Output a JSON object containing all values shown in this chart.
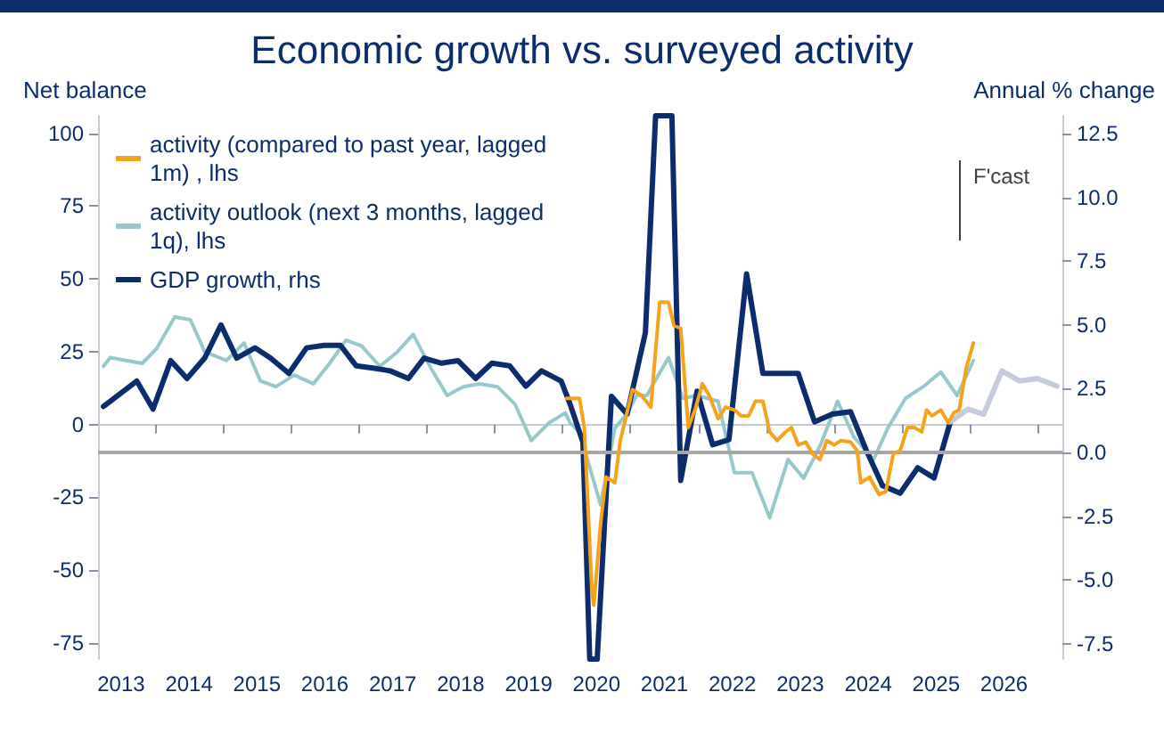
{
  "chart_data": {
    "type": "line",
    "title": "Economic growth vs. surveyed activity",
    "ylabel": "Net balance",
    "y2label": "Annual % change",
    "annotations": [
      "F'cast"
    ],
    "xlim": [
      2013.16,
      2027.36
    ],
    "xticks": [
      {
        "value": 2013.5,
        "label": "2013"
      },
      {
        "value": 2014,
        "label": null
      },
      {
        "value": 2014.5,
        "label": "2014"
      },
      {
        "value": 2015,
        "label": null
      },
      {
        "value": 2015.5,
        "label": "2015"
      },
      {
        "value": 2016,
        "label": null
      },
      {
        "value": 2016.5,
        "label": "2016"
      },
      {
        "value": 2017,
        "label": null
      },
      {
        "value": 2017.5,
        "label": "2017"
      },
      {
        "value": 2018,
        "label": null
      },
      {
        "value": 2018.5,
        "label": "2018"
      },
      {
        "value": 2019,
        "label": null
      },
      {
        "value": 2019.5,
        "label": "2019"
      },
      {
        "value": 2020,
        "label": null
      },
      {
        "value": 2020.5,
        "label": "2020"
      },
      {
        "value": 2021,
        "label": null
      },
      {
        "value": 2021.5,
        "label": "2021"
      },
      {
        "value": 2022,
        "label": null
      },
      {
        "value": 2022.5,
        "label": "2022"
      },
      {
        "value": 2023,
        "label": null
      },
      {
        "value": 2023.5,
        "label": "2023"
      },
      {
        "value": 2024,
        "label": null
      },
      {
        "value": 2024.5,
        "label": "2024"
      },
      {
        "value": 2025,
        "label": null
      },
      {
        "value": 2025.5,
        "label": "2025"
      },
      {
        "value": 2026,
        "label": null
      },
      {
        "value": 2026.5,
        "label": "2026"
      },
      {
        "value": 2027,
        "label": null
      }
    ],
    "ylim": [
      -80.5,
      106
    ],
    "yticks": [
      -75,
      -50,
      -25,
      0,
      25,
      50,
      75,
      100
    ],
    "y2lim": [
      -8.1,
      13.2
    ],
    "y2ticks": [
      {
        "value": -7.5,
        "label": "-7.5"
      },
      {
        "value": -5,
        "label": "-5.0"
      },
      {
        "value": -2.5,
        "label": "-2.5"
      },
      {
        "value": 0,
        "label": "0.0"
      },
      {
        "value": 2.5,
        "label": "2.5"
      },
      {
        "value": 5,
        "label": "5.0"
      },
      {
        "value": 7.5,
        "label": "7.5"
      },
      {
        "value": 10,
        "label": "10.0"
      },
      {
        "value": 12.5,
        "label": "12.5"
      }
    ],
    "ref_lines": [
      {
        "axis": "y2",
        "value": 0,
        "color": "#a6a6a6"
      }
    ],
    "legend": "top left",
    "grid": false,
    "marker": "none",
    "line_style": "solid",
    "series": [
      {
        "name": "activity (compared to past year, lagged 1m) , lhs",
        "color": "#f7a21b",
        "x": [
          2020.06,
          2020.25,
          2020.32,
          2020.43,
          2020.46,
          2020.56,
          2020.64,
          2020.77,
          2020.85,
          2021.03,
          2021.16,
          2021.3,
          2021.43,
          2021.56,
          2021.64,
          2021.74,
          2021.85,
          2021.95,
          2022.06,
          2022.16,
          2022.29,
          2022.4,
          2022.53,
          2022.63,
          2022.74,
          2022.84,
          2022.95,
          2023.05,
          2023.16,
          2023.26,
          2023.37,
          2023.47,
          2023.58,
          2023.68,
          2023.79,
          2023.89,
          2024.0,
          2024.1,
          2024.24,
          2024.34,
          2024.39,
          2024.52,
          2024.66,
          2024.76,
          2024.87,
          2024.97,
          2025.08,
          2025.18,
          2025.29,
          2025.36,
          2025.44,
          2025.57,
          2025.68,
          2025.76,
          2025.84,
          2025.94,
          2026.05
        ],
        "values": [
          9,
          9,
          -1,
          -56,
          -62,
          -34,
          -18,
          -20,
          -5.5,
          12,
          10,
          6,
          42,
          42,
          34,
          33,
          -1,
          5,
          14,
          10,
          2,
          6,
          5,
          3,
          3,
          8,
          8,
          -2.5,
          -5.5,
          -3,
          -1,
          -7,
          -6,
          -10,
          -12,
          -5.5,
          -7,
          -5.5,
          -6,
          -9,
          -20,
          -18,
          -24,
          -23,
          -10,
          -9,
          -1,
          -1,
          -2.5,
          5,
          3,
          5,
          0.6,
          4,
          5,
          19,
          28
        ]
      },
      {
        "name": "activity outlook (next 3 months, lagged 1q), lhs",
        "color": "#97c9cc",
        "x": [
          2013.24,
          2013.34,
          2013.81,
          2014.02,
          2014.29,
          2014.52,
          2014.73,
          2015.05,
          2015.31,
          2015.55,
          2015.78,
          2016.05,
          2016.33,
          2016.57,
          2016.81,
          2017.04,
          2017.31,
          2017.57,
          2017.8,
          2018.07,
          2018.3,
          2018.54,
          2018.78,
          2019.04,
          2019.3,
          2019.54,
          2019.8,
          2020.04,
          2020.11,
          2020.25,
          2020.56,
          2020.77,
          2020.95,
          2021.09,
          2021.24,
          2021.56,
          2021.77,
          2021.98,
          2022.29,
          2022.53,
          2022.79,
          2023.05,
          2023.32,
          2023.55,
          2023.79,
          2024.05,
          2024.29,
          2024.58,
          2024.79,
          2025.05,
          2025.31,
          2025.57,
          2025.81,
          2026.05
        ],
        "values": [
          20,
          23,
          21,
          26,
          37,
          36,
          25,
          22,
          28,
          15,
          13,
          17,
          14,
          21,
          29,
          27,
          20,
          25,
          31,
          19,
          10,
          13,
          14,
          13,
          7,
          -5.5,
          0.6,
          4,
          0.6,
          -2.5,
          -27.6,
          -1.2,
          3.7,
          10,
          10,
          23,
          9,
          10,
          8,
          -16.5,
          -16.5,
          -32,
          -12,
          -18.4,
          -7.4,
          8,
          -4.3,
          -12,
          -1.2,
          9,
          13,
          18,
          10,
          22
        ]
      },
      {
        "name": "GDP growth, rhs",
        "axis": "y2",
        "color": "#0b2d6b",
        "x": [
          2013.24,
          2013.73,
          2013.97,
          2014.23,
          2014.47,
          2014.73,
          2014.97,
          2015.2,
          2015.47,
          2015.7,
          2015.97,
          2016.23,
          2016.49,
          2016.73,
          2016.96,
          2017.23,
          2017.46,
          2017.73,
          2017.96,
          2018.22,
          2018.46,
          2018.72,
          2018.96,
          2019.22,
          2019.46,
          2019.69,
          2019.98,
          2020.11,
          2020.3,
          2020.4,
          2020.51,
          2020.72,
          2020.95,
          2021.22,
          2021.37,
          2021.61,
          2021.74,
          2021.98,
          2022.21,
          2022.45,
          2022.71,
          2022.95,
          2023.21,
          2023.47,
          2023.71,
          2023.97,
          2024.24,
          2024.47,
          2024.71,
          2024.97,
          2025.23,
          2025.47,
          2025.71
        ],
        "values": [
          1.8,
          2.8,
          1.7,
          3.6,
          2.9,
          3.7,
          5.0,
          3.7,
          4.1,
          3.7,
          3.1,
          4.1,
          4.2,
          4.2,
          3.4,
          3.3,
          3.2,
          2.9,
          3.7,
          3.5,
          3.6,
          2.9,
          3.5,
          3.4,
          2.6,
          3.2,
          2.8,
          1.9,
          0.4,
          -8.1,
          -8.1,
          2.2,
          1.5,
          4.7,
          13.2,
          13.2,
          -1.1,
          2.4,
          0.3,
          0.5,
          7.0,
          3.1,
          3.1,
          3.1,
          1.2,
          1.5,
          1.6,
          0.1,
          -1.3,
          -1.6,
          -0.6,
          -1.0,
          1.2
        ]
      },
      {
        "axis": "y2",
        "color": "#c5cbdc",
        "x": [
          2025.71,
          2025.97,
          2026.2,
          2026.47,
          2026.73,
          2026.99,
          2027.28
        ],
        "values": [
          1.2,
          1.7,
          1.5,
          3.2,
          2.8,
          2.9,
          2.6
        ]
      }
    ]
  }
}
